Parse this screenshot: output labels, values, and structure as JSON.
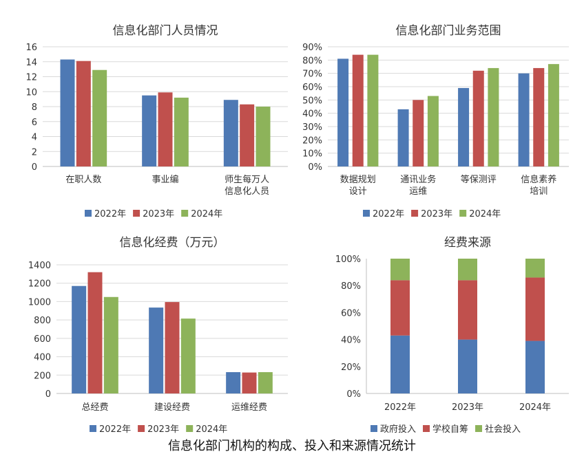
{
  "colors": {
    "s2022": "#4e79b4",
    "s2023": "#c0504d",
    "s2024": "#8db35a",
    "grid": "#d9d9d9",
    "axis": "#bfbfbf"
  },
  "caption": "信息化部门机构的构成、投入和来源情况统计",
  "chart_data": [
    {
      "type": "bar",
      "title": "信息化部门人员情况",
      "categories": [
        [
          "在职人数"
        ],
        [
          "事业编"
        ],
        [
          "师生每万人",
          "信息化人员"
        ]
      ],
      "series": [
        {
          "name": "2022年",
          "values": [
            14.3,
            9.5,
            8.9
          ]
        },
        {
          "name": "2023年",
          "values": [
            14.1,
            9.9,
            8.3
          ]
        },
        {
          "name": "2024年",
          "values": [
            12.9,
            9.2,
            8.0
          ]
        }
      ],
      "ylim": [
        0,
        16
      ],
      "yticks": [
        0,
        2,
        4,
        6,
        8,
        10,
        12,
        14,
        16
      ],
      "tick_labels": [
        "0",
        "2",
        "4",
        "6",
        "8",
        "10",
        "12",
        "14",
        "16"
      ],
      "grid": true,
      "legend": "bottom"
    },
    {
      "type": "bar",
      "title": "信息化部门业务范围",
      "categories": [
        [
          "数据规划",
          "设计"
        ],
        [
          "通讯业务",
          "运维"
        ],
        [
          "等保测评"
        ],
        [
          "信息素养",
          "培训"
        ]
      ],
      "series": [
        {
          "name": "2022年",
          "values": [
            81,
            43,
            59,
            70
          ]
        },
        {
          "name": "2023年",
          "values": [
            84,
            50,
            72,
            74
          ]
        },
        {
          "name": "2024年",
          "values": [
            84,
            53,
            74,
            77
          ]
        }
      ],
      "ylim": [
        0,
        90
      ],
      "yticks": [
        0,
        10,
        20,
        30,
        40,
        50,
        60,
        70,
        80,
        90
      ],
      "tick_labels": [
        "0%",
        "10%",
        "20%",
        "30%",
        "40%",
        "50%",
        "60%",
        "70%",
        "80%",
        "90%"
      ],
      "grid": true,
      "legend": "bottom"
    },
    {
      "type": "bar",
      "title": "信息化经费（万元）",
      "categories": [
        [
          "总经费"
        ],
        [
          "建设经费"
        ],
        [
          "运维经费"
        ]
      ],
      "series": [
        {
          "name": "2022年",
          "values": [
            1170,
            935,
            232
          ]
        },
        {
          "name": "2023年",
          "values": [
            1320,
            995,
            228
          ]
        },
        {
          "name": "2024年",
          "values": [
            1050,
            815,
            232
          ]
        }
      ],
      "ylim": [
        0,
        1400
      ],
      "yticks": [
        0,
        200,
        400,
        600,
        800,
        1000,
        1200,
        1400
      ],
      "tick_labels": [
        "0",
        "200",
        "400",
        "600",
        "800",
        "1000",
        "1200",
        "1400"
      ],
      "grid": true,
      "legend": "bottom"
    },
    {
      "type": "bar",
      "stacked": true,
      "title": "经费来源",
      "categories": [
        [
          "2022年"
        ],
        [
          "2023年"
        ],
        [
          "2024年"
        ]
      ],
      "series": [
        {
          "name": "政府投入",
          "values": [
            43,
            40,
            39
          ]
        },
        {
          "name": "学校自筹",
          "values": [
            41,
            44,
            47
          ]
        },
        {
          "name": "社会投入",
          "values": [
            16,
            16,
            14
          ]
        }
      ],
      "ylim": [
        0,
        100
      ],
      "yticks": [
        0,
        20,
        40,
        60,
        80,
        100
      ],
      "tick_labels": [
        "0%",
        "20%",
        "40%",
        "60%",
        "80%",
        "100%"
      ],
      "grid": false,
      "legend": "bottom"
    }
  ]
}
